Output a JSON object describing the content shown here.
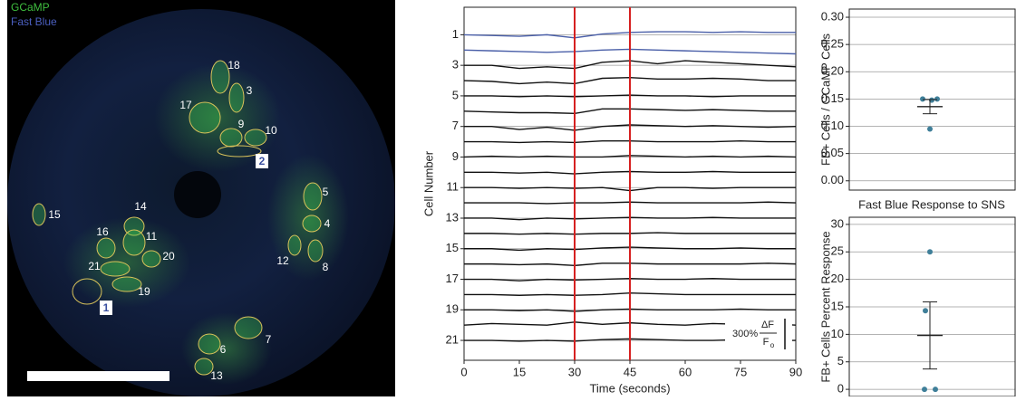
{
  "image": {
    "channels": [
      {
        "label": "GCaMP",
        "color": "#3fbf3f"
      },
      {
        "label": "Fast Blue",
        "color": "#4b5fc0"
      }
    ],
    "cell_labels": [
      "18",
      "3",
      "17",
      "9",
      "10",
      "5",
      "4",
      "12",
      "8",
      "15",
      "14",
      "16",
      "11",
      "20",
      "21",
      "19",
      "7",
      "6",
      "13"
    ],
    "region_labels": [
      "2",
      "1"
    ]
  },
  "chart_data": [
    {
      "type": "line",
      "xlabel": "Time (seconds)",
      "ylabel": "Cell Number",
      "x": [
        0,
        7.5,
        15,
        22.5,
        30,
        37.5,
        45,
        52.5,
        60,
        67.5,
        75,
        82.5,
        90
      ],
      "xlim": [
        0,
        90
      ],
      "ylim": [
        22.3,
        -0.8
      ],
      "xticks": [
        0,
        15,
        30,
        45,
        60,
        75,
        90
      ],
      "yticks": [
        1,
        3,
        5,
        7,
        9,
        11,
        13,
        15,
        17,
        19,
        21
      ],
      "grid": true,
      "vlines": [
        30,
        45
      ],
      "vline_color": "#d62020",
      "scale_bar": {
        "label": "300%",
        "numerator": "ΔF",
        "denominator": "F",
        "subscript": "o"
      },
      "series": [
        {
          "color": "#4a5fa8",
          "values": [
            1.0,
            1.05,
            1.1,
            1.0,
            1.2,
            0.95,
            0.85,
            0.8,
            0.8,
            0.85,
            0.8,
            0.85,
            0.85
          ]
        },
        {
          "color": "#4a5fa8",
          "values": [
            2.0,
            2.05,
            2.1,
            2.15,
            2.1,
            2.0,
            1.95,
            2.0,
            2.05,
            2.1,
            2.15,
            2.2,
            2.25
          ]
        },
        {
          "color": "#111111",
          "values": [
            3.0,
            3.0,
            3.2,
            3.1,
            3.2,
            2.8,
            2.7,
            2.9,
            2.7,
            2.8,
            2.9,
            3.0,
            3.1
          ]
        },
        {
          "color": "#111111",
          "values": [
            4.0,
            4.05,
            4.2,
            4.1,
            4.2,
            3.85,
            3.8,
            3.9,
            3.9,
            3.85,
            3.9,
            4.0,
            4.0
          ]
        },
        {
          "color": "#111111",
          "values": [
            5.0,
            5.0,
            5.05,
            5.0,
            5.05,
            5.0,
            4.95,
            5.0,
            5.0,
            5.05,
            5.0,
            5.0,
            5.0
          ]
        },
        {
          "color": "#111111",
          "values": [
            6.0,
            6.05,
            6.1,
            6.1,
            6.15,
            5.85,
            5.85,
            5.9,
            5.95,
            5.9,
            5.95,
            6.0,
            6.0
          ]
        },
        {
          "color": "#111111",
          "values": [
            7.0,
            7.0,
            7.2,
            7.05,
            7.25,
            7.0,
            6.9,
            6.95,
            7.0,
            6.95,
            7.0,
            7.05,
            7.0
          ]
        },
        {
          "color": "#111111",
          "values": [
            8.0,
            8.0,
            8.05,
            8.0,
            8.05,
            7.95,
            7.95,
            8.0,
            8.0,
            8.0,
            7.95,
            8.0,
            8.0
          ]
        },
        {
          "color": "#111111",
          "values": [
            9.0,
            8.95,
            9.0,
            8.95,
            9.0,
            9.0,
            8.9,
            8.95,
            9.0,
            8.95,
            9.0,
            8.95,
            9.0
          ]
        },
        {
          "color": "#111111",
          "values": [
            10.0,
            10.0,
            10.05,
            10.0,
            10.1,
            10.0,
            9.95,
            10.0,
            10.0,
            9.95,
            10.0,
            10.0,
            10.0
          ]
        },
        {
          "color": "#111111",
          "values": [
            11.0,
            11.0,
            11.05,
            11.0,
            11.05,
            11.0,
            11.2,
            11.0,
            11.0,
            11.05,
            11.0,
            11.0,
            11.0
          ]
        },
        {
          "color": "#111111",
          "values": [
            12.0,
            12.0,
            12.0,
            12.05,
            12.0,
            12.0,
            11.95,
            12.0,
            12.0,
            12.0,
            12.0,
            11.95,
            12.0
          ]
        },
        {
          "color": "#111111",
          "values": [
            13.0,
            13.0,
            13.1,
            13.0,
            13.05,
            13.0,
            12.95,
            13.0,
            13.0,
            12.95,
            13.0,
            13.0,
            13.0
          ]
        },
        {
          "color": "#111111",
          "values": [
            14.0,
            14.0,
            14.05,
            14.0,
            14.05,
            14.0,
            14.0,
            13.95,
            14.0,
            14.0,
            14.0,
            14.0,
            14.0
          ]
        },
        {
          "color": "#111111",
          "values": [
            15.0,
            15.0,
            15.1,
            15.0,
            15.05,
            14.95,
            14.9,
            14.95,
            15.0,
            15.0,
            14.95,
            15.0,
            15.0
          ]
        },
        {
          "color": "#111111",
          "values": [
            16.0,
            16.0,
            16.05,
            16.0,
            16.1,
            15.95,
            15.95,
            16.0,
            16.0,
            16.0,
            16.0,
            15.95,
            16.0
          ]
        },
        {
          "color": "#111111",
          "values": [
            17.0,
            17.0,
            17.1,
            17.0,
            17.05,
            17.0,
            16.95,
            17.0,
            17.0,
            16.95,
            17.0,
            17.0,
            17.0
          ]
        },
        {
          "color": "#111111",
          "values": [
            18.0,
            18.0,
            18.05,
            18.0,
            18.05,
            18.0,
            17.9,
            17.95,
            18.0,
            18.0,
            18.0,
            18.0,
            18.0
          ]
        },
        {
          "color": "#111111",
          "values": [
            19.0,
            19.0,
            19.05,
            19.0,
            19.1,
            19.0,
            18.95,
            19.0,
            19.0,
            19.0,
            18.95,
            19.0,
            19.0
          ]
        },
        {
          "color": "#111111",
          "values": [
            20.0,
            19.9,
            19.95,
            20.0,
            19.8,
            19.95,
            19.85,
            19.95,
            20.0,
            19.9,
            19.95,
            19.9,
            20.0
          ]
        },
        {
          "color": "#111111",
          "values": [
            21.0,
            21.0,
            21.05,
            21.0,
            21.05,
            20.95,
            20.9,
            20.95,
            21.0,
            21.0,
            20.95,
            21.0,
            21.0
          ]
        }
      ]
    },
    {
      "type": "scatter",
      "ylabel": "FB+ Cells / GCaMP Cells",
      "values": [
        0.15,
        0.148,
        0.15,
        0.095
      ],
      "mean": 0.136,
      "error": 0.013,
      "color": "#3f7f99",
      "ylim": [
        -0.017,
        0.315
      ],
      "grid": true,
      "yticks": [
        {
          "value": 0,
          "label": "0.00"
        },
        {
          "value": 0.05,
          "label": "0.05"
        },
        {
          "value": 0.1,
          "label": "0.10"
        },
        {
          "value": 0.15,
          "label": "0.15"
        },
        {
          "value": 0.2,
          "label": "0.20"
        },
        {
          "value": 0.25,
          "label": "0.25"
        },
        {
          "value": 0.3,
          "label": "0.30"
        }
      ]
    },
    {
      "type": "scatter",
      "title": "Fast Blue Response to SNS",
      "ylabel": "FB+ Cells Percent Response",
      "values": [
        25,
        14.3,
        0,
        0
      ],
      "mean": 9.8,
      "error": 6.1,
      "color": "#3f7f99",
      "ylim": [
        -1.3,
        31.3
      ],
      "grid": true,
      "yticks": [
        0,
        5,
        10,
        15,
        20,
        25,
        30
      ]
    }
  ]
}
